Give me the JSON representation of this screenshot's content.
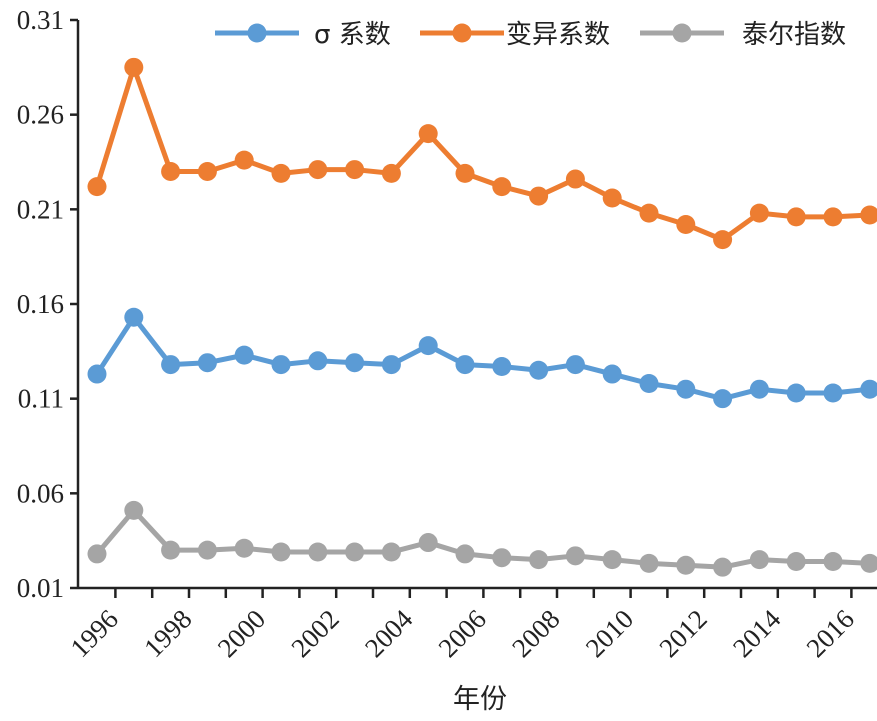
{
  "chart_data": {
    "type": "line",
    "xlabel": "年份",
    "ylabel": "",
    "ylim": [
      0.01,
      0.31
    ],
    "yticks": [
      "0.01",
      "0.06",
      "0.11",
      "0.16",
      "0.21",
      "0.26",
      "0.31"
    ],
    "x": [
      1996,
      1997,
      1998,
      1999,
      2000,
      2001,
      2002,
      2003,
      2004,
      2005,
      2006,
      2007,
      2008,
      2009,
      2010,
      2011,
      2012,
      2013,
      2014,
      2015,
      2016,
      2017
    ],
    "xtick_labels": [
      "1996",
      "1998",
      "2000",
      "2002",
      "2004",
      "2006",
      "2008",
      "2010",
      "2012",
      "2014",
      "2016"
    ],
    "legend_position": "top-right",
    "series": [
      {
        "name": "σ 系数",
        "color": "#5b9bd5",
        "values": [
          0.123,
          0.153,
          0.128,
          0.129,
          0.133,
          0.128,
          0.13,
          0.129,
          0.128,
          0.138,
          0.128,
          0.127,
          0.125,
          0.128,
          0.123,
          0.118,
          0.115,
          0.11,
          0.115,
          0.113,
          0.113,
          0.115
        ]
      },
      {
        "name": "变异系数",
        "color": "#ed7d31",
        "values": [
          0.222,
          0.285,
          0.23,
          0.23,
          0.236,
          0.229,
          0.231,
          0.231,
          0.229,
          0.25,
          0.229,
          0.222,
          0.217,
          0.226,
          0.216,
          0.208,
          0.202,
          0.194,
          0.208,
          0.206,
          0.206,
          0.207
        ]
      },
      {
        "name": "泰尔指数",
        "color": "#a5a5a5",
        "values": [
          0.028,
          0.051,
          0.03,
          0.03,
          0.031,
          0.029,
          0.029,
          0.029,
          0.029,
          0.034,
          0.028,
          0.026,
          0.025,
          0.027,
          0.025,
          0.023,
          0.022,
          0.021,
          0.025,
          0.024,
          0.024,
          0.023
        ]
      }
    ]
  }
}
